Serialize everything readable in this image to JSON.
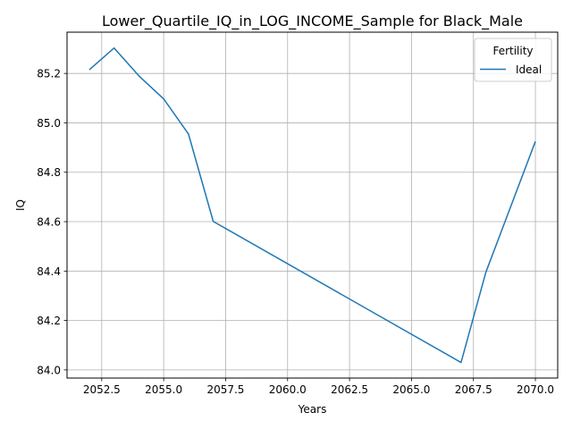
{
  "chart_data": {
    "type": "line",
    "title": "Lower_Quartile_IQ_in_LOG_INCOME_Sample for Black_Male",
    "xlabel": "Years",
    "ylabel": "IQ",
    "xlim": [
      2051.1,
      2070.9
    ],
    "ylim": [
      83.967,
      85.367
    ],
    "xticks": [
      2052.5,
      2055.0,
      2057.5,
      2060.0,
      2062.5,
      2065.0,
      2067.5,
      2070.0
    ],
    "xtick_labels": [
      "2052.5",
      "2055.0",
      "2057.5",
      "2060.0",
      "2062.5",
      "2065.0",
      "2067.5",
      "2070.0"
    ],
    "yticks": [
      84.0,
      84.2,
      84.4,
      84.6,
      84.8,
      85.0,
      85.2
    ],
    "ytick_labels": [
      "84.0",
      "84.2",
      "84.4",
      "84.6",
      "84.8",
      "85.0",
      "85.2"
    ],
    "grid": true,
    "legend": {
      "title": "Fertility",
      "position": "top-right"
    },
    "series": [
      {
        "name": "Ideal",
        "color": "#1f77b4",
        "x": [
          2052,
          2053,
          2054,
          2055,
          2056,
          2057,
          2067,
          2068,
          2070
        ],
        "y": [
          85.215,
          85.303,
          85.19,
          85.097,
          84.955,
          84.601,
          84.03,
          84.395,
          84.925
        ]
      }
    ]
  }
}
